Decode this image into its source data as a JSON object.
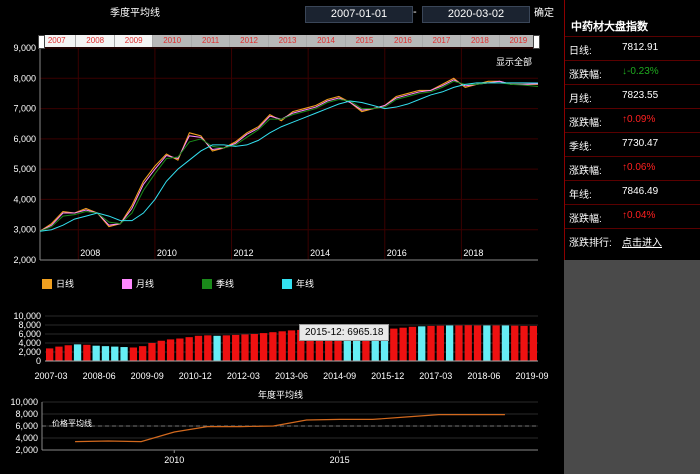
{
  "header": {
    "main_title": "季度平均线",
    "start_date": "2007-01-01",
    "separator": "-",
    "end_date": "2020-03-02",
    "confirm_label": "确定",
    "show_all_label": "显示全部"
  },
  "year_tabs": [
    "2007",
    "2008",
    "2009",
    "2010",
    "2011",
    "2012",
    "2013",
    "2014",
    "2015",
    "2016",
    "2017",
    "2018",
    "2019"
  ],
  "legend": [
    {
      "label": "日线",
      "color": "#f0a020"
    },
    {
      "label": "月线",
      "color": "#ff88ff"
    },
    {
      "label": "季线",
      "color": "#1a8a1a"
    },
    {
      "label": "年线",
      "color": "#33e0f0"
    }
  ],
  "side_panel": {
    "title": "中药材大盘指数",
    "rows": [
      {
        "label": "日线:",
        "value": "7812.91",
        "color": "#ffffff"
      },
      {
        "label": "涨跌幅:",
        "value": "↓-0.23%",
        "color": "#1faa1f"
      },
      {
        "label": "月线:",
        "value": "7823.55",
        "color": "#ffffff"
      },
      {
        "label": "涨跌幅:",
        "value": "↑0.09%",
        "color": "#ff2020"
      },
      {
        "label": "季线:",
        "value": "7730.47",
        "color": "#ffffff"
      },
      {
        "label": "涨跌幅:",
        "value": "↑0.06%",
        "color": "#ff2020"
      },
      {
        "label": "年线:",
        "value": "7846.49",
        "color": "#ffffff"
      },
      {
        "label": "涨跌幅:",
        "value": "↑0.04%",
        "color": "#ff2020"
      },
      {
        "label": "涨跌排行:",
        "value": "点击进入",
        "color": "#ffffff",
        "link": true
      }
    ]
  },
  "tooltip": "2015-12: 6965.18",
  "bottom_title": "年度平均线",
  "bottom_series_label": "价格平均线",
  "chart_data": [
    {
      "type": "line",
      "ylim": [
        2000,
        9000
      ],
      "y_ticks": [
        2000,
        3000,
        4000,
        5000,
        6000,
        7000,
        8000,
        9000
      ],
      "x_ticks": [
        "2008",
        "2010",
        "2012",
        "2014",
        "2016",
        "2018"
      ],
      "x": [
        2007.0,
        2007.3,
        2007.6,
        2007.9,
        2008.2,
        2008.5,
        2008.8,
        2009.1,
        2009.4,
        2009.7,
        2010.0,
        2010.3,
        2010.6,
        2010.9,
        2011.2,
        2011.5,
        2011.8,
        2012.1,
        2012.4,
        2012.7,
        2013.0,
        2013.3,
        2013.6,
        2013.9,
        2014.2,
        2014.5,
        2014.8,
        2015.1,
        2015.4,
        2015.7,
        2016.0,
        2016.3,
        2016.6,
        2016.9,
        2017.2,
        2017.5,
        2017.8,
        2018.1,
        2018.4,
        2018.7,
        2019.0,
        2019.3,
        2019.6,
        2020.0
      ],
      "series": [
        {
          "name": "日线",
          "values": [
            2950,
            3200,
            3600,
            3550,
            3700,
            3550,
            3100,
            3200,
            3800,
            4600,
            5100,
            5500,
            5300,
            6200,
            6100,
            5600,
            5700,
            5900,
            6200,
            6400,
            6800,
            6600,
            6900,
            7000,
            7100,
            7300,
            7400,
            7200,
            6900,
            7000,
            7100,
            7400,
            7500,
            7600,
            7600,
            7800,
            8000,
            7700,
            7800,
            7900,
            7900,
            7800,
            7800,
            7800
          ]
        },
        {
          "name": "月线",
          "values": [
            2950,
            3150,
            3550,
            3550,
            3650,
            3550,
            3150,
            3200,
            3700,
            4500,
            5000,
            5450,
            5350,
            6100,
            6050,
            5650,
            5700,
            5850,
            6150,
            6350,
            6750,
            6650,
            6850,
            6950,
            7050,
            7250,
            7350,
            7200,
            6950,
            7000,
            7100,
            7350,
            7450,
            7550,
            7600,
            7750,
            7950,
            7750,
            7800,
            7850,
            7900,
            7800,
            7800,
            7820
          ]
        },
        {
          "name": "季线",
          "values": [
            2950,
            3100,
            3450,
            3500,
            3600,
            3550,
            3250,
            3200,
            3550,
            4300,
            4850,
            5350,
            5400,
            5900,
            6000,
            5750,
            5700,
            5800,
            6050,
            6300,
            6650,
            6650,
            6800,
            6900,
            7000,
            7200,
            7300,
            7250,
            7000,
            7000,
            7050,
            7300,
            7400,
            7500,
            7550,
            7700,
            7900,
            7800,
            7800,
            7850,
            7850,
            7800,
            7780,
            7730
          ]
        },
        {
          "name": "年线",
          "values": [
            2950,
            3000,
            3150,
            3350,
            3450,
            3550,
            3450,
            3300,
            3300,
            3550,
            4000,
            4600,
            5000,
            5300,
            5600,
            5800,
            5800,
            5750,
            5800,
            5950,
            6200,
            6400,
            6550,
            6700,
            6850,
            7000,
            7150,
            7250,
            7200,
            7100,
            7000,
            7050,
            7150,
            7300,
            7450,
            7550,
            7700,
            7800,
            7850,
            7850,
            7850,
            7850,
            7850,
            7846
          ]
        }
      ]
    },
    {
      "type": "bar",
      "ylim": [
        0,
        10000
      ],
      "y_ticks": [
        0,
        2000,
        4000,
        6000,
        8000,
        10000
      ],
      "x_ticks": [
        "2007-03",
        "2008-06",
        "2009-09",
        "2010-12",
        "2012-03",
        "2013-06",
        "2014-09",
        "2015-12",
        "2017-03",
        "2018-06",
        "2019-09"
      ],
      "values": [
        2800,
        3200,
        3500,
        3700,
        3600,
        3400,
        3300,
        3200,
        3100,
        3000,
        3300,
        4000,
        4500,
        4800,
        5000,
        5300,
        5600,
        5700,
        5600,
        5700,
        5800,
        5900,
        6000,
        6200,
        6400,
        6600,
        6800,
        6900,
        7000,
        7000,
        7100,
        6900,
        7000,
        7000,
        6950,
        6965,
        7000,
        7200,
        7400,
        7600,
        7700,
        7800,
        7850,
        7900,
        7900,
        7950,
        7900,
        7900,
        7900,
        7900,
        7850,
        7800,
        7800
      ],
      "highlight": [
        false,
        false,
        false,
        true,
        false,
        true,
        true,
        true,
        true,
        false,
        false,
        false,
        false,
        false,
        false,
        false,
        false,
        false,
        true,
        false,
        false,
        false,
        false,
        false,
        false,
        false,
        false,
        false,
        false,
        false,
        false,
        false,
        true,
        true,
        false,
        true,
        true,
        false,
        false,
        false,
        true,
        false,
        false,
        true,
        false,
        false,
        false,
        true,
        false,
        true,
        false,
        false,
        false
      ]
    },
    {
      "type": "line",
      "ylim": [
        2000,
        10000
      ],
      "y_ticks": [
        2000,
        4000,
        6000,
        8000,
        10000
      ],
      "x_ticks": [
        "2010",
        "2015"
      ],
      "x": [
        2007,
        2008,
        2009,
        2010,
        2011,
        2012,
        2013,
        2014,
        2015,
        2016,
        2017,
        2018,
        2019,
        2020
      ],
      "series": [
        {
          "name": "价格平均线",
          "values": [
            3400,
            3500,
            3400,
            5000,
            5900,
            5900,
            6000,
            7000,
            7100,
            7100,
            7500,
            7900,
            7900,
            7900
          ]
        }
      ]
    }
  ]
}
